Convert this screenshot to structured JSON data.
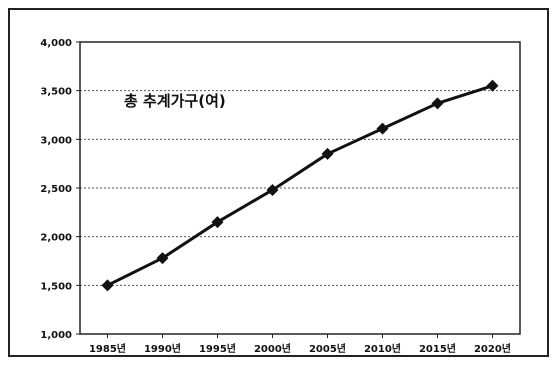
{
  "chart_data": {
    "type": "line",
    "title": "",
    "xlabel": "",
    "ylabel": "",
    "categories": [
      "1985년",
      "1990년",
      "1995년",
      "2000년",
      "2005년",
      "2010년",
      "2015년",
      "2020년"
    ],
    "series": [
      {
        "values": [
          1500,
          1780,
          2150,
          2480,
          2850,
          3110,
          3370,
          3550
        ]
      }
    ],
    "ylim": [
      1000,
      4000
    ],
    "yticks": [
      1000,
      1500,
      2000,
      2500,
      3000,
      3500,
      4000
    ],
    "ytick_labels": [
      "1,000",
      "1,500",
      "2,000",
      "2,500",
      "3,000",
      "3,500",
      "4,000"
    ],
    "grid": "horizontal-dotted",
    "annotation": "총 추계가구(여)",
    "colors": {
      "line": "#111111",
      "marker": "#111111",
      "grid": "#555555",
      "axis": "#222222"
    }
  }
}
